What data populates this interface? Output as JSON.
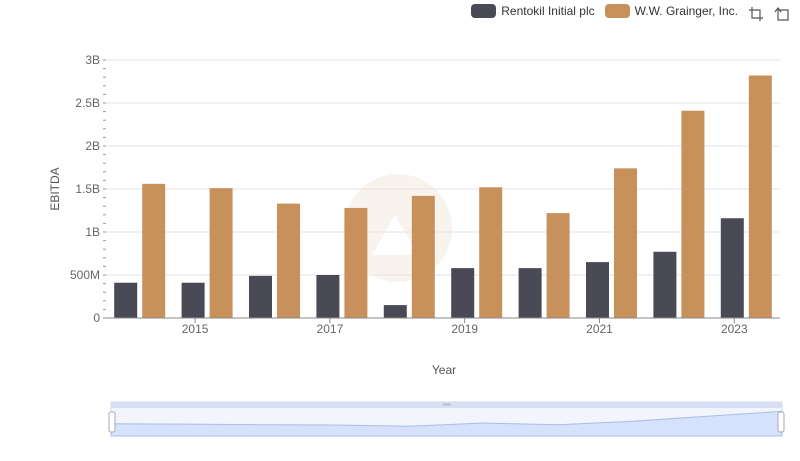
{
  "legend": {
    "items": [
      {
        "name": "Rentokil Initial plc",
        "color": "#4a4a56"
      },
      {
        "name": "W.W. Grainger, Inc.",
        "color": "#c8915c"
      }
    ]
  },
  "toolbox": {
    "zoom_icon": "zoom-icon",
    "restore_icon": "restore-icon"
  },
  "chart_data": {
    "type": "bar",
    "title": "",
    "xlabel": "Year",
    "ylabel": "EBITDA",
    "categories": [
      "2014",
      "2015",
      "2016",
      "2017",
      "2018",
      "2019",
      "2020",
      "2021",
      "2022",
      "2023"
    ],
    "x_tick_labels": [
      "2015",
      "2017",
      "2019",
      "2021",
      "2023"
    ],
    "y_tick_labels": [
      "0",
      "500M",
      "1B",
      "1.5B",
      "2B",
      "2.5B",
      "3B"
    ],
    "ylim": [
      0,
      3000000000
    ],
    "grid": true,
    "legend_position": "top-right",
    "series": [
      {
        "name": "Rentokil Initial plc",
        "color": "#4a4a56",
        "values": [
          410000000,
          410000000,
          490000000,
          500000000,
          150000000,
          580000000,
          580000000,
          650000000,
          770000000,
          1160000000
        ]
      },
      {
        "name": "W.W. Grainger, Inc.",
        "color": "#c8915c",
        "values": [
          1560000000,
          1510000000,
          1330000000,
          1280000000,
          1420000000,
          1520000000,
          1220000000,
          1740000000,
          2410000000,
          2820000000
        ]
      }
    ]
  }
}
